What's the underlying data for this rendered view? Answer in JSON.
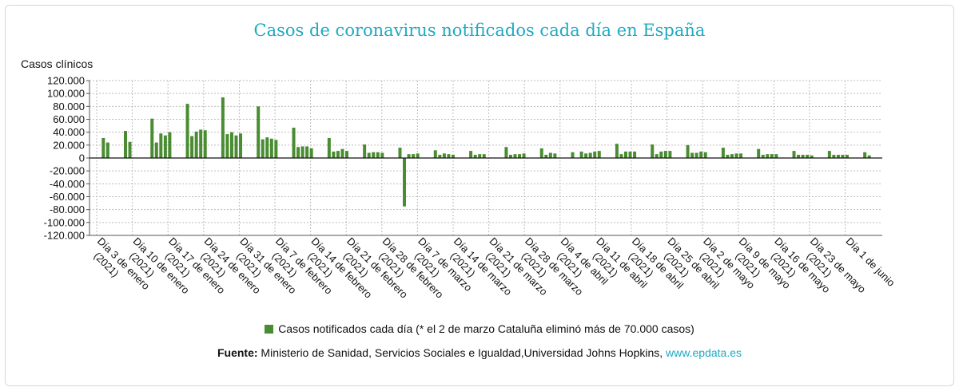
{
  "chart_data": {
    "type": "bar",
    "title": "Casos de coronavirus notificados cada día en España",
    "ylabel": "Casos clínicos",
    "xlabel": "",
    "ylim": [
      -120000,
      120000
    ],
    "yticks": [
      120000,
      100000,
      80000,
      60000,
      40000,
      20000,
      0,
      -20000,
      -40000,
      -60000,
      -80000,
      -100000,
      -120000
    ],
    "ytick_labels": [
      "120.000",
      "100.000",
      "80.000",
      "60.000",
      "40.000",
      "20.000",
      "0",
      "-20.000",
      "-40.000",
      "-60.000",
      "-80.000",
      "-100.000",
      "-120.000"
    ],
    "grid": true,
    "bar_color": "#4a8c32",
    "x_tick_labels": [
      [
        "Día 3 de enero",
        "(2021)"
      ],
      [
        "Día 10 de enero",
        "(2021)"
      ],
      [
        "Día 17 de enero",
        "(2021)"
      ],
      [
        "Día 24 de enero",
        "(2021)"
      ],
      [
        "Día 31 de enero",
        "(2021)"
      ],
      [
        "Día 7 de febrero",
        "(2021)"
      ],
      [
        "Día 14 de febrero",
        "(2021)"
      ],
      [
        "Día 21 de febrero",
        "(2021)"
      ],
      [
        "Día 28 de febrero",
        "(2021)"
      ],
      [
        "Día 7 de marzo",
        "(2021)"
      ],
      [
        "Día 14 de marzo",
        "(2021)"
      ],
      [
        "Día 21 de marzo",
        "(2021)"
      ],
      [
        "Día 28 de marzo",
        "(2021)"
      ],
      [
        "Día 4 de abril",
        "(2021)"
      ],
      [
        "Día 11 de abril",
        "(2021)"
      ],
      [
        "Día 18 de abril",
        "(2021)"
      ],
      [
        "Día 25 de abril",
        "(2021)"
      ],
      [
        "Día 2 de mayo",
        "(2021)"
      ],
      [
        "Día 9 de mayo",
        "(2021)"
      ],
      [
        "Día 16 de mayo",
        "(2021)"
      ],
      [
        "Día 23 de mayo",
        "(2021)"
      ],
      [
        "Día 1 de junio",
        ""
      ]
    ],
    "values": [
      0,
      31000,
      24000,
      0,
      0,
      0,
      42000,
      25000,
      0,
      0,
      0,
      0,
      61000,
      24000,
      38000,
      35000,
      40000,
      0,
      0,
      0,
      84000,
      34000,
      41000,
      44000,
      43000,
      0,
      0,
      0,
      94000,
      37000,
      40000,
      35000,
      38000,
      0,
      0,
      0,
      80000,
      29000,
      32000,
      30000,
      28000,
      0,
      0,
      0,
      47000,
      17000,
      18000,
      18000,
      15000,
      0,
      0,
      0,
      31000,
      10000,
      11000,
      14000,
      11000,
      0,
      0,
      0,
      21000,
      8000,
      9000,
      9000,
      8000,
      0,
      0,
      0,
      16000,
      -75000,
      6000,
      6000,
      7000,
      0,
      0,
      0,
      12000,
      5000,
      7000,
      6000,
      5000,
      0,
      0,
      0,
      11000,
      5000,
      6000,
      6000,
      0,
      0,
      0,
      0,
      17000,
      5000,
      6000,
      6000,
      7000,
      0,
      0,
      0,
      15000,
      5000,
      8000,
      7000,
      0,
      0,
      0,
      9000,
      0,
      10000,
      7000,
      8000,
      10000,
      11000,
      0,
      0,
      0,
      22000,
      6000,
      10000,
      10000,
      10000,
      0,
      0,
      0,
      21000,
      6000,
      10000,
      11000,
      11000,
      0,
      0,
      0,
      20000,
      8000,
      8000,
      10000,
      9000,
      0,
      0,
      0,
      16000,
      5000,
      6000,
      7000,
      7000,
      0,
      0,
      0,
      14000,
      5000,
      6000,
      6000,
      6000,
      0,
      0,
      0,
      11000,
      5000,
      5000,
      5000,
      4000,
      0,
      0,
      0,
      11000,
      5000,
      5000,
      5000,
      5000,
      0,
      0,
      0,
      9000,
      4000,
      0
    ]
  },
  "legend": {
    "label": "Casos notificados cada día (* el 2 de marzo Cataluña eliminó más de 70.000 casos)"
  },
  "source": {
    "prefix": "Fuente:",
    "text": " Ministerio de Sanidad, Servicios Sociales e Igualdad,Universidad Johns Hopkins, ",
    "link": "www.epdata.es"
  }
}
